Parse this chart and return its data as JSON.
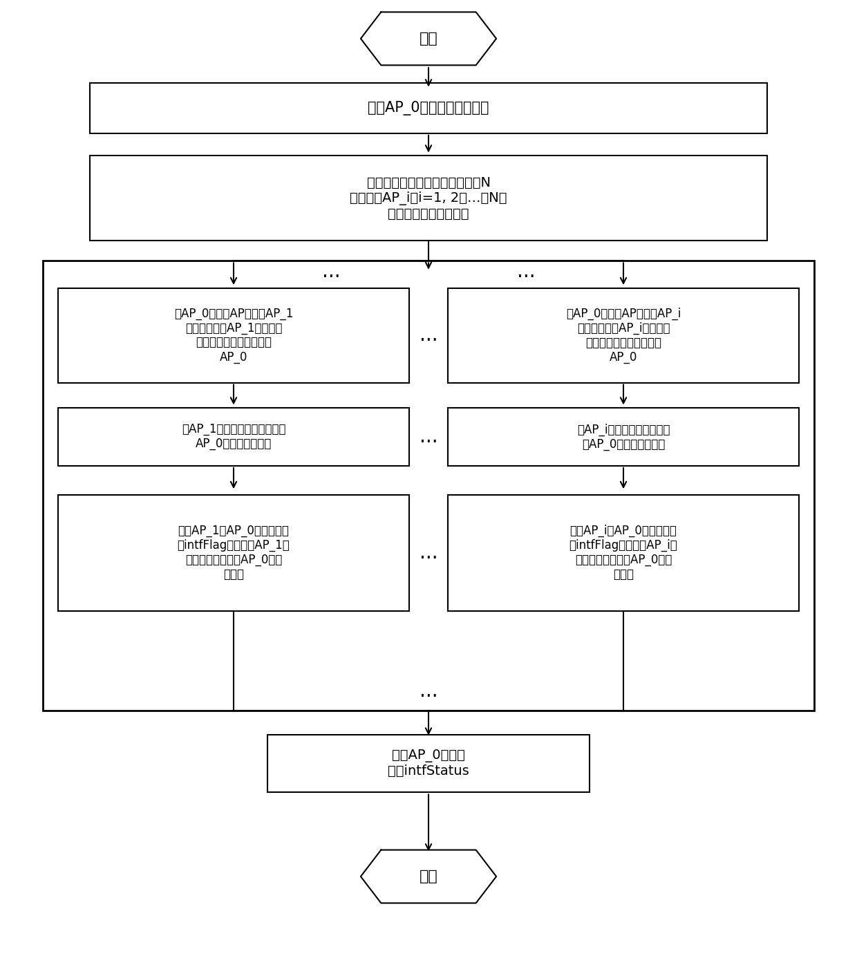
{
  "bg_color": "#ffffff",
  "box1_text": "更新AP_0的信道质量评估表",
  "box2_text": "触发其信道质量评估表中记录的N\n个同频邻AP_i（i=1, 2，…，N）\n更新其干扰情况评估表",
  "box_l1_text": "将AP_0的邻居AP列表中AP_1\n的信息拷贝到AP_1的干扰情\n况评估表中，表头更换为\nAP_0",
  "box_r1_text": "将AP_0的邻居AP列表中AP_i\n的信息拷贝到AP_i的干扰情\n况评估表中，表头更换为\nAP_0",
  "box_l2_text": "在AP_1的干扰情况评估表中的\nAP_0项中添加时间戳",
  "box_r2_text": "在AP_i的干扰情况评估表中\n的AP_0项中添加时间戳",
  "box_l3_text": "计算AP_1对AP_0的干扰标志\n位intfFlag并记录在AP_1的\n干扰情况评估表中AP_0项的\n对应位",
  "box_r3_text": "计算AP_i对AP_0的干扰标志\n位intfFlag并记录在AP_i的\n干扰情况评估表中AP_0项的\n对应位",
  "box3_text": "计算AP_0的干扰\n状态intfStatus",
  "start_text": "开始",
  "end_text": "结束",
  "dots": "..."
}
